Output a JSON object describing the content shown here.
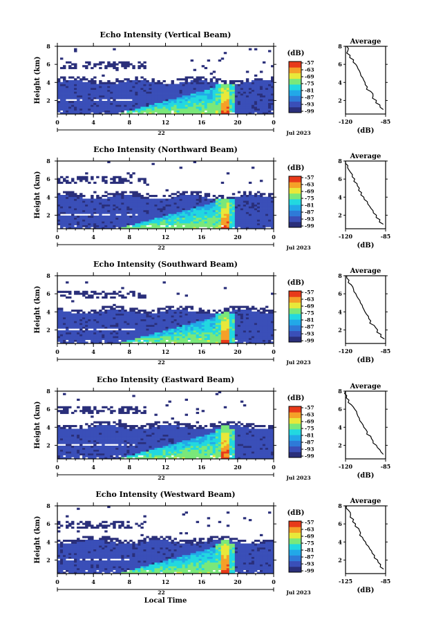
{
  "figure": {
    "xlabel": "Local Time",
    "date_label": "Jul 2023",
    "day_label": "22",
    "colorbar_label": "(dB)",
    "colorbar_ticks": [
      "-57",
      "-63",
      "-69",
      "-75",
      "-81",
      "-87",
      "-93",
      "-99"
    ],
    "colormap": [
      "#2a2f7a",
      "#3a4fb8",
      "#2e7ad8",
      "#22a8e8",
      "#22d8e0",
      "#7ae87a",
      "#e8e83a",
      "#f5a028",
      "#e83a1a"
    ],
    "avg_title": "Average",
    "avg_xlabel": "(dB)"
  },
  "chart_data": [
    {
      "type": "heatmap",
      "title": "Echo Intensity (Vertical Beam)",
      "ylabel": "Height (km)",
      "xlabel": "",
      "x_ticks": [
        "0",
        "4",
        "8",
        "12",
        "16",
        "20",
        "0"
      ],
      "y_ticks": [
        "2",
        "4",
        "6",
        "8"
      ],
      "xlim": [
        0,
        24
      ],
      "ylim": [
        0.5,
        8
      ],
      "zlim": [
        -99,
        -57
      ],
      "avg_profile": {
        "x_ticks": [
          "-120",
          "-85"
        ],
        "xlim": [
          -120,
          -85
        ],
        "y_ticks": [
          "2",
          "4",
          "6",
          "8"
        ],
        "heights": [
          8.0,
          7.5,
          7.0,
          6.5,
          6.0,
          5.5,
          5.0,
          4.5,
          4.0,
          3.5,
          3.0,
          2.5,
          2.0,
          1.5,
          1.0
        ],
        "values": [
          -119,
          -118,
          -116,
          -113,
          -111,
          -109,
          -107,
          -105,
          -103,
          -101,
          -98,
          -96,
          -93,
          -90,
          -87
        ]
      }
    },
    {
      "type": "heatmap",
      "title": "Echo Intensity (Northward Beam)",
      "ylabel": "Height (km)",
      "xlabel": "",
      "x_ticks": [
        "0",
        "4",
        "8",
        "12",
        "16",
        "20",
        "0"
      ],
      "y_ticks": [
        "2",
        "4",
        "6",
        "8"
      ],
      "xlim": [
        0,
        24
      ],
      "ylim": [
        0.5,
        8
      ],
      "zlim": [
        -99,
        -57
      ],
      "avg_profile": {
        "x_ticks": [
          "-120",
          "-85"
        ],
        "xlim": [
          -120,
          -85
        ],
        "y_ticks": [
          "2",
          "4",
          "6",
          "8"
        ],
        "heights": [
          8.0,
          7.5,
          7.0,
          6.5,
          6.0,
          5.5,
          5.0,
          4.5,
          4.0,
          3.5,
          3.0,
          2.5,
          2.0,
          1.5,
          1.0
        ],
        "values": [
          -120,
          -118,
          -117,
          -114,
          -112,
          -110,
          -108,
          -106,
          -104,
          -101,
          -99,
          -96,
          -93,
          -90,
          -87
        ]
      }
    },
    {
      "type": "heatmap",
      "title": "Echo Intensity (Southward Beam)",
      "ylabel": "Height (km)",
      "xlabel": "",
      "x_ticks": [
        "0",
        "4",
        "8",
        "12",
        "16",
        "20",
        "0"
      ],
      "y_ticks": [
        "2",
        "4",
        "6",
        "8"
      ],
      "xlim": [
        0,
        24
      ],
      "ylim": [
        0.5,
        8
      ],
      "zlim": [
        -99,
        -57
      ],
      "avg_profile": {
        "x_ticks": [
          "-120",
          "-85"
        ],
        "xlim": [
          -120,
          -85
        ],
        "y_ticks": [
          "2",
          "4",
          "6",
          "8"
        ],
        "heights": [
          8.0,
          7.5,
          7.0,
          6.5,
          6.0,
          5.5,
          5.0,
          4.5,
          4.0,
          3.5,
          3.0,
          2.5,
          2.0,
          1.5,
          1.0
        ],
        "values": [
          -119,
          -117,
          -115,
          -113,
          -111,
          -109,
          -107,
          -105,
          -103,
          -100,
          -98,
          -95,
          -92,
          -89,
          -86
        ]
      }
    },
    {
      "type": "heatmap",
      "title": "Echo Intensity (Eastward Beam)",
      "ylabel": "Height (km)",
      "xlabel": "",
      "x_ticks": [
        "0",
        "4",
        "8",
        "12",
        "16",
        "20",
        "0"
      ],
      "y_ticks": [
        "2",
        "4",
        "6",
        "8"
      ],
      "xlim": [
        0,
        24
      ],
      "ylim": [
        0.5,
        8
      ],
      "zlim": [
        -99,
        -57
      ],
      "avg_profile": {
        "x_ticks": [
          "-120",
          "-85"
        ],
        "xlim": [
          -120,
          -85
        ],
        "y_ticks": [
          "2",
          "4",
          "6",
          "8"
        ],
        "heights": [
          8.0,
          7.5,
          7.0,
          6.5,
          6.0,
          5.5,
          5.0,
          4.5,
          4.0,
          3.5,
          3.0,
          2.5,
          2.0,
          1.5,
          1.0
        ],
        "values": [
          -120,
          -119,
          -117,
          -115,
          -112,
          -110,
          -108,
          -106,
          -104,
          -101,
          -98,
          -96,
          -93,
          -90,
          -87
        ]
      }
    },
    {
      "type": "heatmap",
      "title": "Echo Intensity (Westward Beam)",
      "ylabel": "Height (km)",
      "xlabel": "Local Time",
      "x_ticks": [
        "0",
        "4",
        "8",
        "12",
        "16",
        "20",
        "0"
      ],
      "y_ticks": [
        "2",
        "4",
        "6",
        "8"
      ],
      "xlim": [
        0,
        24
      ],
      "ylim": [
        0.5,
        8
      ],
      "zlim": [
        -99,
        -57
      ],
      "avg_profile": {
        "x_ticks": [
          "-125",
          "-85"
        ],
        "xlim": [
          -125,
          -85
        ],
        "y_ticks": [
          "2",
          "4",
          "6",
          "8"
        ],
        "heights": [
          8.0,
          7.5,
          7.0,
          6.5,
          6.0,
          5.5,
          5.0,
          4.5,
          4.0,
          3.5,
          3.0,
          2.5,
          2.0,
          1.5,
          1.0
        ],
        "values": [
          -124,
          -122,
          -120,
          -117,
          -115,
          -112,
          -110,
          -108,
          -105,
          -102,
          -99,
          -96,
          -93,
          -90,
          -87
        ]
      }
    }
  ]
}
